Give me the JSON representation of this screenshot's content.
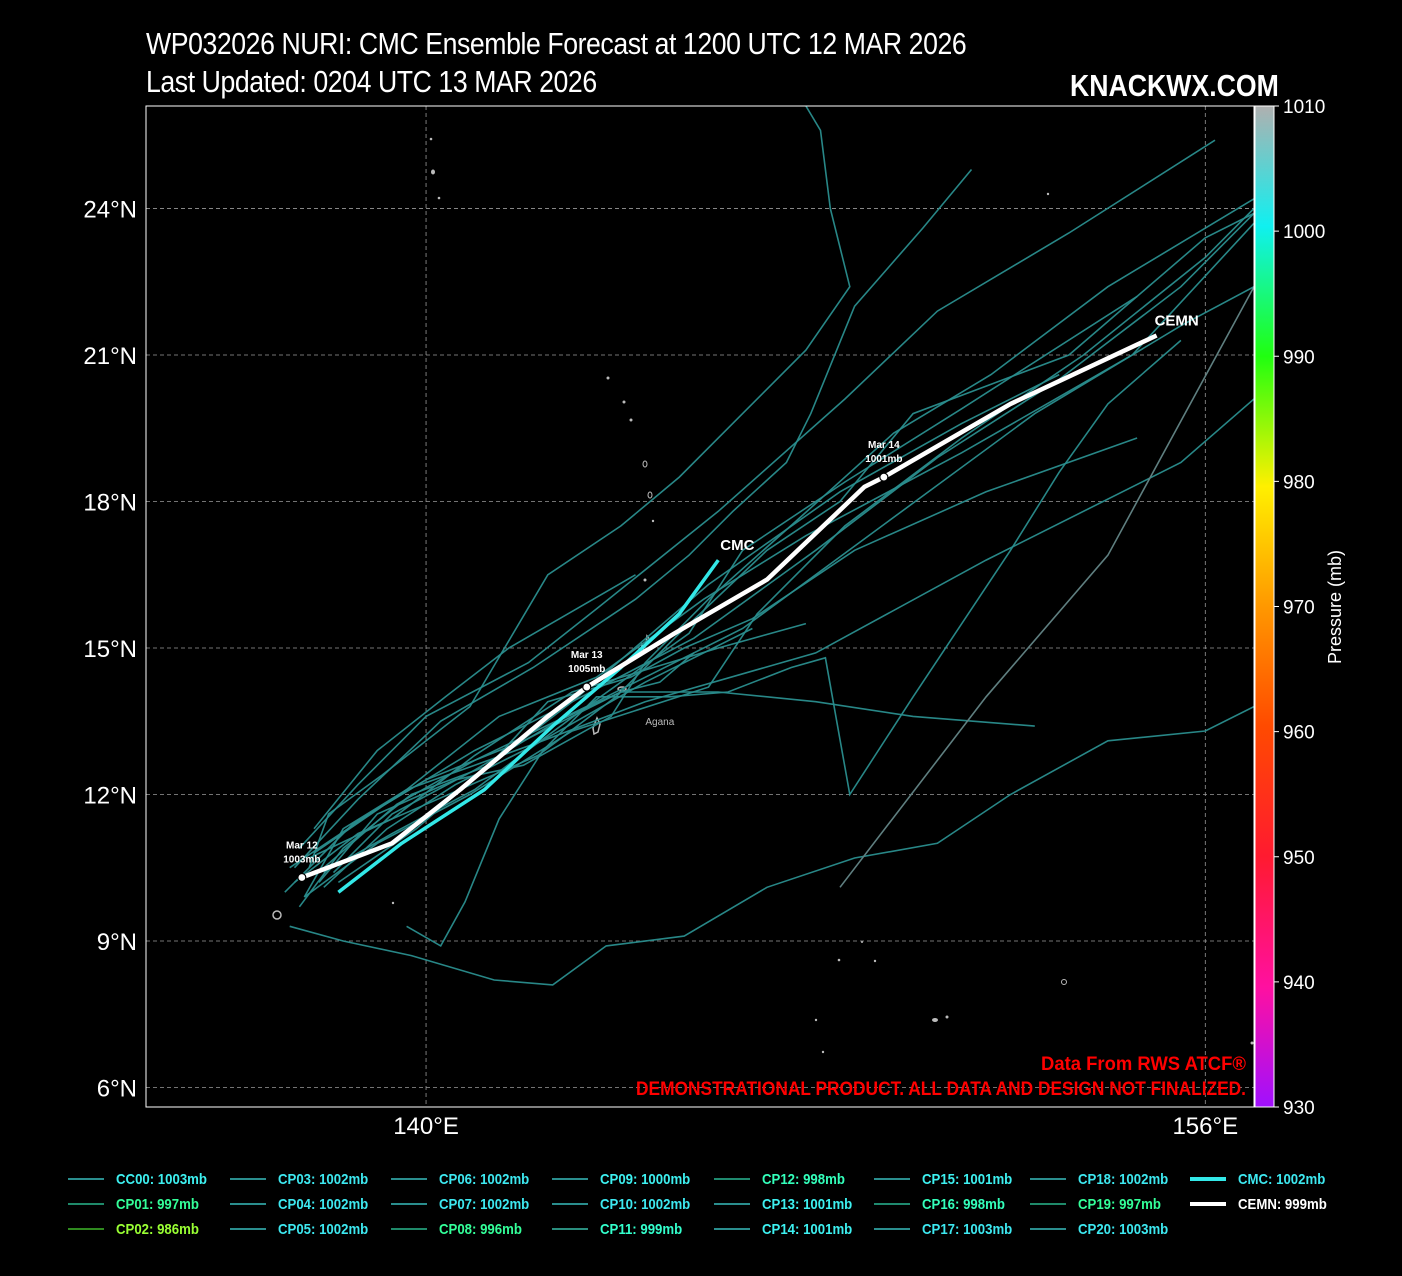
{
  "header": {
    "title": "WP032026 NURI: CMC Ensemble Forecast at 1200 UTC 12 MAR 2026",
    "updated": "Last Updated: 0204 UTC 13 MAR 2026",
    "brand": "KNACKWX.COM"
  },
  "map": {
    "lon_range": [
      134.25,
      157.0
    ],
    "lat_range": [
      5.6,
      26.1
    ],
    "lat_ticks": [
      {
        "v": 6,
        "label": "6°N"
      },
      {
        "v": 9,
        "label": "9°N"
      },
      {
        "v": 12,
        "label": "12°N"
      },
      {
        "v": 15,
        "label": "15°N"
      },
      {
        "v": 18,
        "label": "18°N"
      },
      {
        "v": 21,
        "label": "21°N"
      },
      {
        "v": 24,
        "label": "24°N"
      }
    ],
    "lon_ticks": [
      {
        "v": 140,
        "label": "140°E"
      },
      {
        "v": 156,
        "label": "156°E"
      }
    ],
    "place_label": {
      "text": "Agana",
      "lon": 144.8,
      "lat": 13.5
    }
  },
  "colorbar": {
    "label": "Pressure (mb)",
    "min": 930,
    "max": 1010,
    "ticks": [
      {
        "v": 1010,
        "label": "1010"
      },
      {
        "v": 1000,
        "label": "1000"
      },
      {
        "v": 990,
        "label": "990"
      },
      {
        "v": 980,
        "label": "980"
      },
      {
        "v": 970,
        "label": "970"
      },
      {
        "v": 960,
        "label": "960"
      },
      {
        "v": 950,
        "label": "950"
      },
      {
        "v": 940,
        "label": "940"
      },
      {
        "v": 930,
        "label": "930"
      }
    ]
  },
  "notices": {
    "source": "Data From RWS ATCF®",
    "disclaimer": "DEMONSTRATIONAL PRODUCT. ALL DATA AND DESIGN NOT FINALIZED."
  },
  "track_labels": {
    "cmc": "CMC",
    "cemn": "CEMN",
    "points": [
      {
        "date": "Mar 12",
        "pres": "1003mb",
        "lon": 137.45,
        "lat": 10.3
      },
      {
        "date": "Mar 13",
        "pres": "1005mb",
        "lon": 143.3,
        "lat": 14.2
      },
      {
        "date": "Mar 14",
        "pres": "1001mb",
        "lon": 149.4,
        "lat": 18.5
      }
    ]
  },
  "colors": {
    "member": "#2a8e8e",
    "member_gray": "#5f7f80",
    "cmc": "#33e8e8",
    "cemn": "#ffffff",
    "notice": "#ff0000"
  },
  "tracks": {
    "cmc": [
      [
        138.2,
        10.0
      ],
      [
        139.5,
        11.0
      ],
      [
        141.2,
        12.1
      ],
      [
        142.6,
        13.4
      ],
      [
        144.0,
        14.6
      ],
      [
        145.2,
        15.7
      ],
      [
        146.0,
        16.8
      ]
    ],
    "cemn": [
      [
        137.45,
        10.3
      ],
      [
        139.3,
        11.0
      ],
      [
        140.7,
        12.1
      ],
      [
        142.5,
        13.6
      ],
      [
        143.3,
        14.2
      ],
      [
        145.1,
        15.3
      ],
      [
        147.0,
        16.4
      ],
      [
        149.0,
        18.3
      ],
      [
        149.4,
        18.5
      ],
      [
        152.0,
        20.0
      ],
      [
        155.0,
        21.4
      ]
    ],
    "members": [
      [
        [
          137.9,
          10.5
        ],
        [
          139.4,
          11.8
        ],
        [
          141.0,
          12.7
        ],
        [
          143.5,
          13.9
        ],
        [
          146.5,
          15.4
        ],
        [
          149.5,
          17.6
        ],
        [
          152.5,
          19.8
        ],
        [
          155.5,
          21.6
        ],
        [
          157.0,
          22.4
        ]
      ],
      [
        [
          137.7,
          10.8
        ],
        [
          139.6,
          12.1
        ],
        [
          141.5,
          13.6
        ],
        [
          143.5,
          14.4
        ],
        [
          145.7,
          16.0
        ],
        [
          147.8,
          17.3
        ],
        [
          151.0,
          19.0
        ],
        [
          154.5,
          21.0
        ],
        [
          157.0,
          23.7
        ]
      ],
      [
        [
          138.2,
          10.2
        ],
        [
          139.8,
          11.3
        ],
        [
          141.3,
          12.6
        ],
        [
          143.0,
          13.9
        ],
        [
          145.8,
          16.3
        ],
        [
          148.5,
          18.2
        ],
        [
          151.0,
          19.6
        ],
        [
          153.0,
          20.6
        ]
      ],
      [
        [
          137.2,
          10.5
        ],
        [
          139.0,
          11.7
        ],
        [
          141.0,
          12.9
        ],
        [
          143.0,
          13.9
        ],
        [
          145.5,
          15.2
        ],
        [
          148.0,
          17.0
        ],
        [
          150.5,
          18.9
        ],
        [
          153.0,
          20.5
        ],
        [
          155.5,
          22.4
        ],
        [
          157.0,
          23.9
        ]
      ],
      [
        [
          137.9,
          10.1
        ],
        [
          139.2,
          11.3
        ],
        [
          140.6,
          12.2
        ],
        [
          142.2,
          13.0
        ],
        [
          144.5,
          14.3
        ],
        [
          146.7,
          15.4
        ]
      ],
      [
        [
          137.5,
          9.9
        ],
        [
          139.0,
          11.0
        ],
        [
          140.9,
          12.0
        ],
        [
          143.0,
          13.3
        ],
        [
          145.8,
          14.2
        ],
        [
          146.8,
          15.7
        ],
        [
          148.6,
          17.5
        ],
        [
          151.0,
          19.3
        ],
        [
          153.5,
          21.0
        ],
        [
          156.0,
          23.0
        ],
        [
          157.0,
          24.0
        ]
      ],
      [
        [
          137.4,
          10.9
        ],
        [
          138.6,
          12.2
        ],
        [
          140.0,
          13.6
        ],
        [
          142.1,
          14.7
        ],
        [
          143.5,
          15.8
        ],
        [
          146.0,
          17.8
        ],
        [
          148.6,
          20.1
        ],
        [
          150.5,
          21.9
        ],
        [
          153.2,
          23.5
        ],
        [
          156.2,
          25.4
        ]
      ],
      [
        [
          137.1,
          10.0
        ],
        [
          138.5,
          11.4
        ],
        [
          140.0,
          12.3
        ],
        [
          142.0,
          13.1
        ],
        [
          144.0,
          14.1
        ],
        [
          146.0,
          14.1
        ],
        [
          148.0,
          13.9
        ],
        [
          150.0,
          13.6
        ],
        [
          152.5,
          13.4
        ]
      ],
      [
        [
          137.7,
          11.3
        ],
        [
          139.0,
          12.9
        ],
        [
          140.4,
          14.0
        ],
        [
          141.7,
          15.0
        ],
        [
          144.3,
          16.5
        ]
      ],
      [
        [
          138.1,
          10.4
        ],
        [
          139.3,
          11.6
        ],
        [
          141.0,
          12.5
        ],
        [
          142.7,
          13.5
        ],
        [
          144.0,
          14.1
        ],
        [
          144.8,
          14.3
        ],
        [
          145.5,
          14.9
        ]
      ],
      [
        [
          137.6,
          10.7
        ],
        [
          139.3,
          11.5
        ],
        [
          141.0,
          12.8
        ],
        [
          143.0,
          14.1
        ],
        [
          146.0,
          15.0
        ],
        [
          147.8,
          15.5
        ]
      ],
      [
        [
          137.2,
          9.3
        ],
        [
          138.3,
          9.0
        ],
        [
          139.7,
          8.7
        ],
        [
          141.4,
          8.2
        ],
        [
          142.6,
          8.1
        ],
        [
          143.7,
          8.9
        ],
        [
          145.3,
          9.1
        ],
        [
          147.0,
          10.1
        ],
        [
          148.8,
          10.7
        ],
        [
          150.5,
          11.0
        ],
        [
          152.0,
          12.0
        ],
        [
          154.0,
          13.1
        ],
        [
          156.0,
          13.3
        ],
        [
          157.0,
          13.8
        ]
      ],
      [
        [
          139.6,
          9.3
        ],
        [
          140.3,
          8.9
        ],
        [
          140.8,
          9.8
        ],
        [
          141.5,
          11.5
        ],
        [
          142.4,
          12.9
        ],
        [
          143.5,
          14.0
        ],
        [
          145.0,
          14.0
        ],
        [
          146.2,
          14.1
        ],
        [
          147.5,
          14.6
        ],
        [
          148.2,
          14.8
        ],
        [
          148.7,
          12.0
        ],
        [
          150.0,
          14.0
        ],
        [
          152.0,
          17.0
        ],
        [
          153.0,
          18.6
        ],
        [
          154.0,
          20.0
        ],
        [
          155.5,
          21.3
        ]
      ],
      [
        [
          137.5,
          9.9
        ],
        [
          138.3,
          11.3
        ],
        [
          139.6,
          12.1
        ],
        [
          141.0,
          12.6
        ],
        [
          142.4,
          13.1
        ],
        [
          144.5,
          13.9
        ],
        [
          148.0,
          14.9
        ],
        [
          151.5,
          16.8
        ],
        [
          155.5,
          18.8
        ],
        [
          157.0,
          20.1
        ]
      ],
      [
        [
          137.8,
          10.2
        ],
        [
          139.0,
          11.6
        ],
        [
          140.6,
          12.3
        ],
        [
          142.0,
          12.6
        ],
        [
          143.8,
          13.6
        ],
        [
          144.5,
          14.7
        ],
        [
          145.8,
          16.0
        ],
        [
          147.6,
          17.6
        ],
        [
          149.6,
          19.4
        ],
        [
          151.6,
          20.6
        ],
        [
          154.0,
          22.4
        ],
        [
          157.0,
          24.2
        ]
      ],
      [
        [
          137.4,
          9.7
        ],
        [
          138.3,
          10.9
        ],
        [
          139.7,
          12.0
        ],
        [
          141.3,
          12.6
        ],
        [
          142.5,
          13.9
        ],
        [
          144.2,
          14.4
        ],
        [
          145.3,
          15.0
        ],
        [
          146.7,
          15.6
        ],
        [
          148.8,
          17.0
        ],
        [
          151.5,
          18.2
        ],
        [
          154.6,
          19.3
        ]
      ],
      [
        [
          137.6,
          10.5
        ],
        [
          138.0,
          11.6
        ],
        [
          139.1,
          12.4
        ],
        [
          140.9,
          13.8
        ],
        [
          142.5,
          16.5
        ],
        [
          144.0,
          17.5
        ],
        [
          145.2,
          18.5
        ],
        [
          146.5,
          19.8
        ],
        [
          147.8,
          21.1
        ],
        [
          148.7,
          22.4
        ],
        [
          148.3,
          24.0
        ],
        [
          148.1,
          25.6
        ],
        [
          147.8,
          26.1
        ]
      ],
      [
        [
          137.3,
          10.2
        ],
        [
          138.6,
          11.2
        ],
        [
          140.0,
          11.8
        ],
        [
          142.3,
          12.8
        ],
        [
          143.9,
          14.0
        ],
        [
          145.2,
          15.3
        ],
        [
          147.0,
          17.0
        ],
        [
          148.5,
          18.0
        ],
        [
          150.0,
          19.8
        ],
        [
          153.2,
          21.0
        ],
        [
          156.0,
          23.4
        ],
        [
          157.0,
          23.9
        ]
      ],
      [
        [
          137.9,
          10.4
        ],
        [
          139.3,
          11.2
        ],
        [
          141.0,
          12.1
        ],
        [
          143.3,
          13.8
        ],
        [
          145.4,
          15.3
        ],
        [
          146.5,
          17.0
        ],
        [
          148.6,
          18.4
        ],
        [
          151.0,
          19.9
        ],
        [
          154.6,
          22.2
        ]
      ],
      [
        [
          137.3,
          10.5
        ],
        [
          138.6,
          11.9
        ],
        [
          140.3,
          13.5
        ],
        [
          142.2,
          14.6
        ],
        [
          144.3,
          16.0
        ],
        [
          145.4,
          16.9
        ],
        [
          146.3,
          17.8
        ],
        [
          147.4,
          18.8
        ],
        [
          147.9,
          19.8
        ],
        [
          148.8,
          22.0
        ],
        [
          150.2,
          23.6
        ],
        [
          151.2,
          24.8
        ]
      ]
    ],
    "gray_members": [
      [
        [
          148.5,
          10.1
        ],
        [
          151.5,
          14.0
        ],
        [
          154.0,
          16.9
        ],
        [
          157.0,
          22.4
        ]
      ]
    ]
  },
  "legend": [
    {
      "label": "CC00: 1003mb",
      "color": "#3df0f0",
      "line": "#2a8e8e"
    },
    {
      "label": "CP01: 997mb",
      "color": "#33ff99",
      "line": "#1f8a6a"
    },
    {
      "label": "CP02: 986mb",
      "color": "#99ff33",
      "line": "#2f8a1f"
    },
    {
      "label": "CP03: 1002mb",
      "color": "#3de8f0",
      "line": "#2a8e8e"
    },
    {
      "label": "CP04: 1002mb",
      "color": "#3de8f0",
      "line": "#2a8e8e"
    },
    {
      "label": "CP05: 1002mb",
      "color": "#3de8f0",
      "line": "#2a8e8e"
    },
    {
      "label": "CP06: 1002mb",
      "color": "#3de8f0",
      "line": "#2a8e8e"
    },
    {
      "label": "CP07: 1002mb",
      "color": "#3de8f0",
      "line": "#2a8e8e"
    },
    {
      "label": "CP08: 996mb",
      "color": "#33ff99",
      "line": "#1f8a6a"
    },
    {
      "label": "CP09: 1000mb",
      "color": "#3df0f0",
      "line": "#2a8e8e"
    },
    {
      "label": "CP10: 1002mb",
      "color": "#3de8f0",
      "line": "#2a8e8e"
    },
    {
      "label": "CP11: 999mb",
      "color": "#33ffcc",
      "line": "#2a8e7e"
    },
    {
      "label": "CP12: 998mb",
      "color": "#33ffbb",
      "line": "#1f8a6f"
    },
    {
      "label": "CP13: 1001mb",
      "color": "#3df0f0",
      "line": "#2a8e8e"
    },
    {
      "label": "CP14: 1001mb",
      "color": "#3df0f0",
      "line": "#2a8e8e"
    },
    {
      "label": "CP15: 1001mb",
      "color": "#3df0f0",
      "line": "#2a8e8e"
    },
    {
      "label": "CP16: 998mb",
      "color": "#33ffbb",
      "line": "#1f8a6f"
    },
    {
      "label": "CP17: 1003mb",
      "color": "#3de8f0",
      "line": "#2a8e8e"
    },
    {
      "label": "CP18: 1002mb",
      "color": "#3de8f0",
      "line": "#2a8e8e"
    },
    {
      "label": "CP19: 997mb",
      "color": "#33ff99",
      "line": "#1f8a6a"
    },
    {
      "label": "CP20: 1003mb",
      "color": "#3de8f0",
      "line": "#2a8e8e"
    },
    {
      "label": "CMC: 1002mb",
      "color": "#3de8f0",
      "line": "#33e8e8",
      "bold": true
    },
    {
      "label": "CEMN: 999mb",
      "color": "#ffffff",
      "line": "#ffffff",
      "bold": true
    }
  ]
}
